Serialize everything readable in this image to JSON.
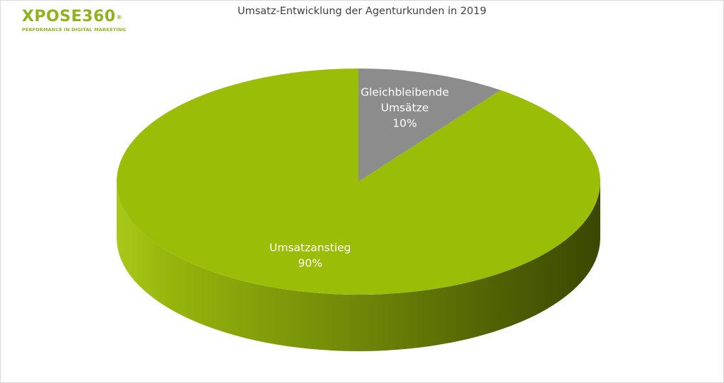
{
  "logo": {
    "name": "XPOSE360",
    "registered_mark": "®",
    "tagline": "PERFORMANCE IN DIGITAL MARKETING",
    "color": "#8fb31f"
  },
  "chart_data": {
    "type": "pie",
    "title": "Umsatz-Entwicklung der Agenturkunden in 2019",
    "style": "3d",
    "slices": [
      {
        "label_lines": [
          "Gleichbleibende",
          "Umsätze"
        ],
        "value": 10,
        "value_label": "10%",
        "color": "#8c8c8c"
      },
      {
        "label_lines": [
          "Umsatzanstieg"
        ],
        "value": 90,
        "value_label": "90%",
        "color": "#9abd07"
      }
    ],
    "legend": "none"
  }
}
